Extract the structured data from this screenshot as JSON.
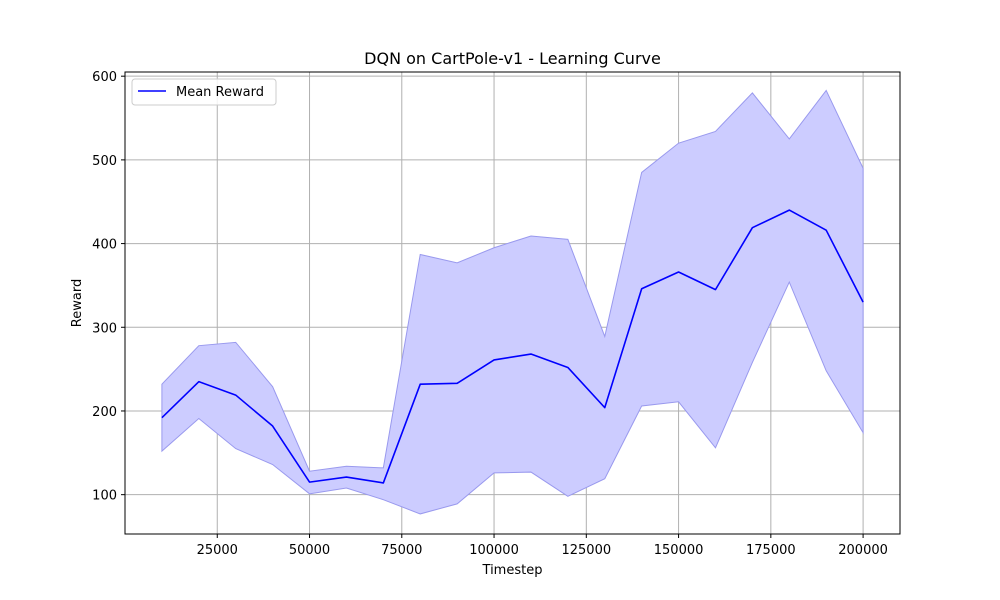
{
  "chart_data": {
    "type": "line",
    "title": "DQN on CartPole-v1 - Learning Curve",
    "xlabel": "Timestep",
    "ylabel": "Reward",
    "xlim": [
      0,
      210000
    ],
    "ylim": [
      53,
      605
    ],
    "x_ticks": [
      25000,
      50000,
      75000,
      100000,
      125000,
      150000,
      175000,
      200000
    ],
    "y_ticks": [
      100,
      200,
      300,
      400,
      500,
      600
    ],
    "grid": true,
    "legend_position": "top-left",
    "x": [
      10000,
      20000,
      30000,
      40000,
      50000,
      60000,
      70000,
      80000,
      90000,
      100000,
      110000,
      120000,
      130000,
      140000,
      150000,
      160000,
      170000,
      180000,
      190000,
      200000
    ],
    "series": [
      {
        "name": "Mean Reward",
        "color": "#0000ff",
        "values": [
          192,
          235,
          219,
          182,
          115,
          121,
          114,
          232,
          233,
          261,
          268,
          252,
          204,
          346,
          366,
          345,
          419,
          440,
          416,
          330
        ],
        "band_upper": [
          232,
          278,
          282,
          229,
          128,
          134,
          132,
          387,
          377,
          395,
          409,
          405,
          289,
          485,
          520,
          534,
          580,
          525,
          583,
          490
        ],
        "band_lower": [
          152,
          191,
          155,
          136,
          101,
          108,
          94,
          77,
          89,
          126,
          127,
          98,
          119,
          206,
          211,
          156,
          258,
          354,
          248,
          174
        ],
        "band_color": "#ccccff"
      }
    ]
  }
}
